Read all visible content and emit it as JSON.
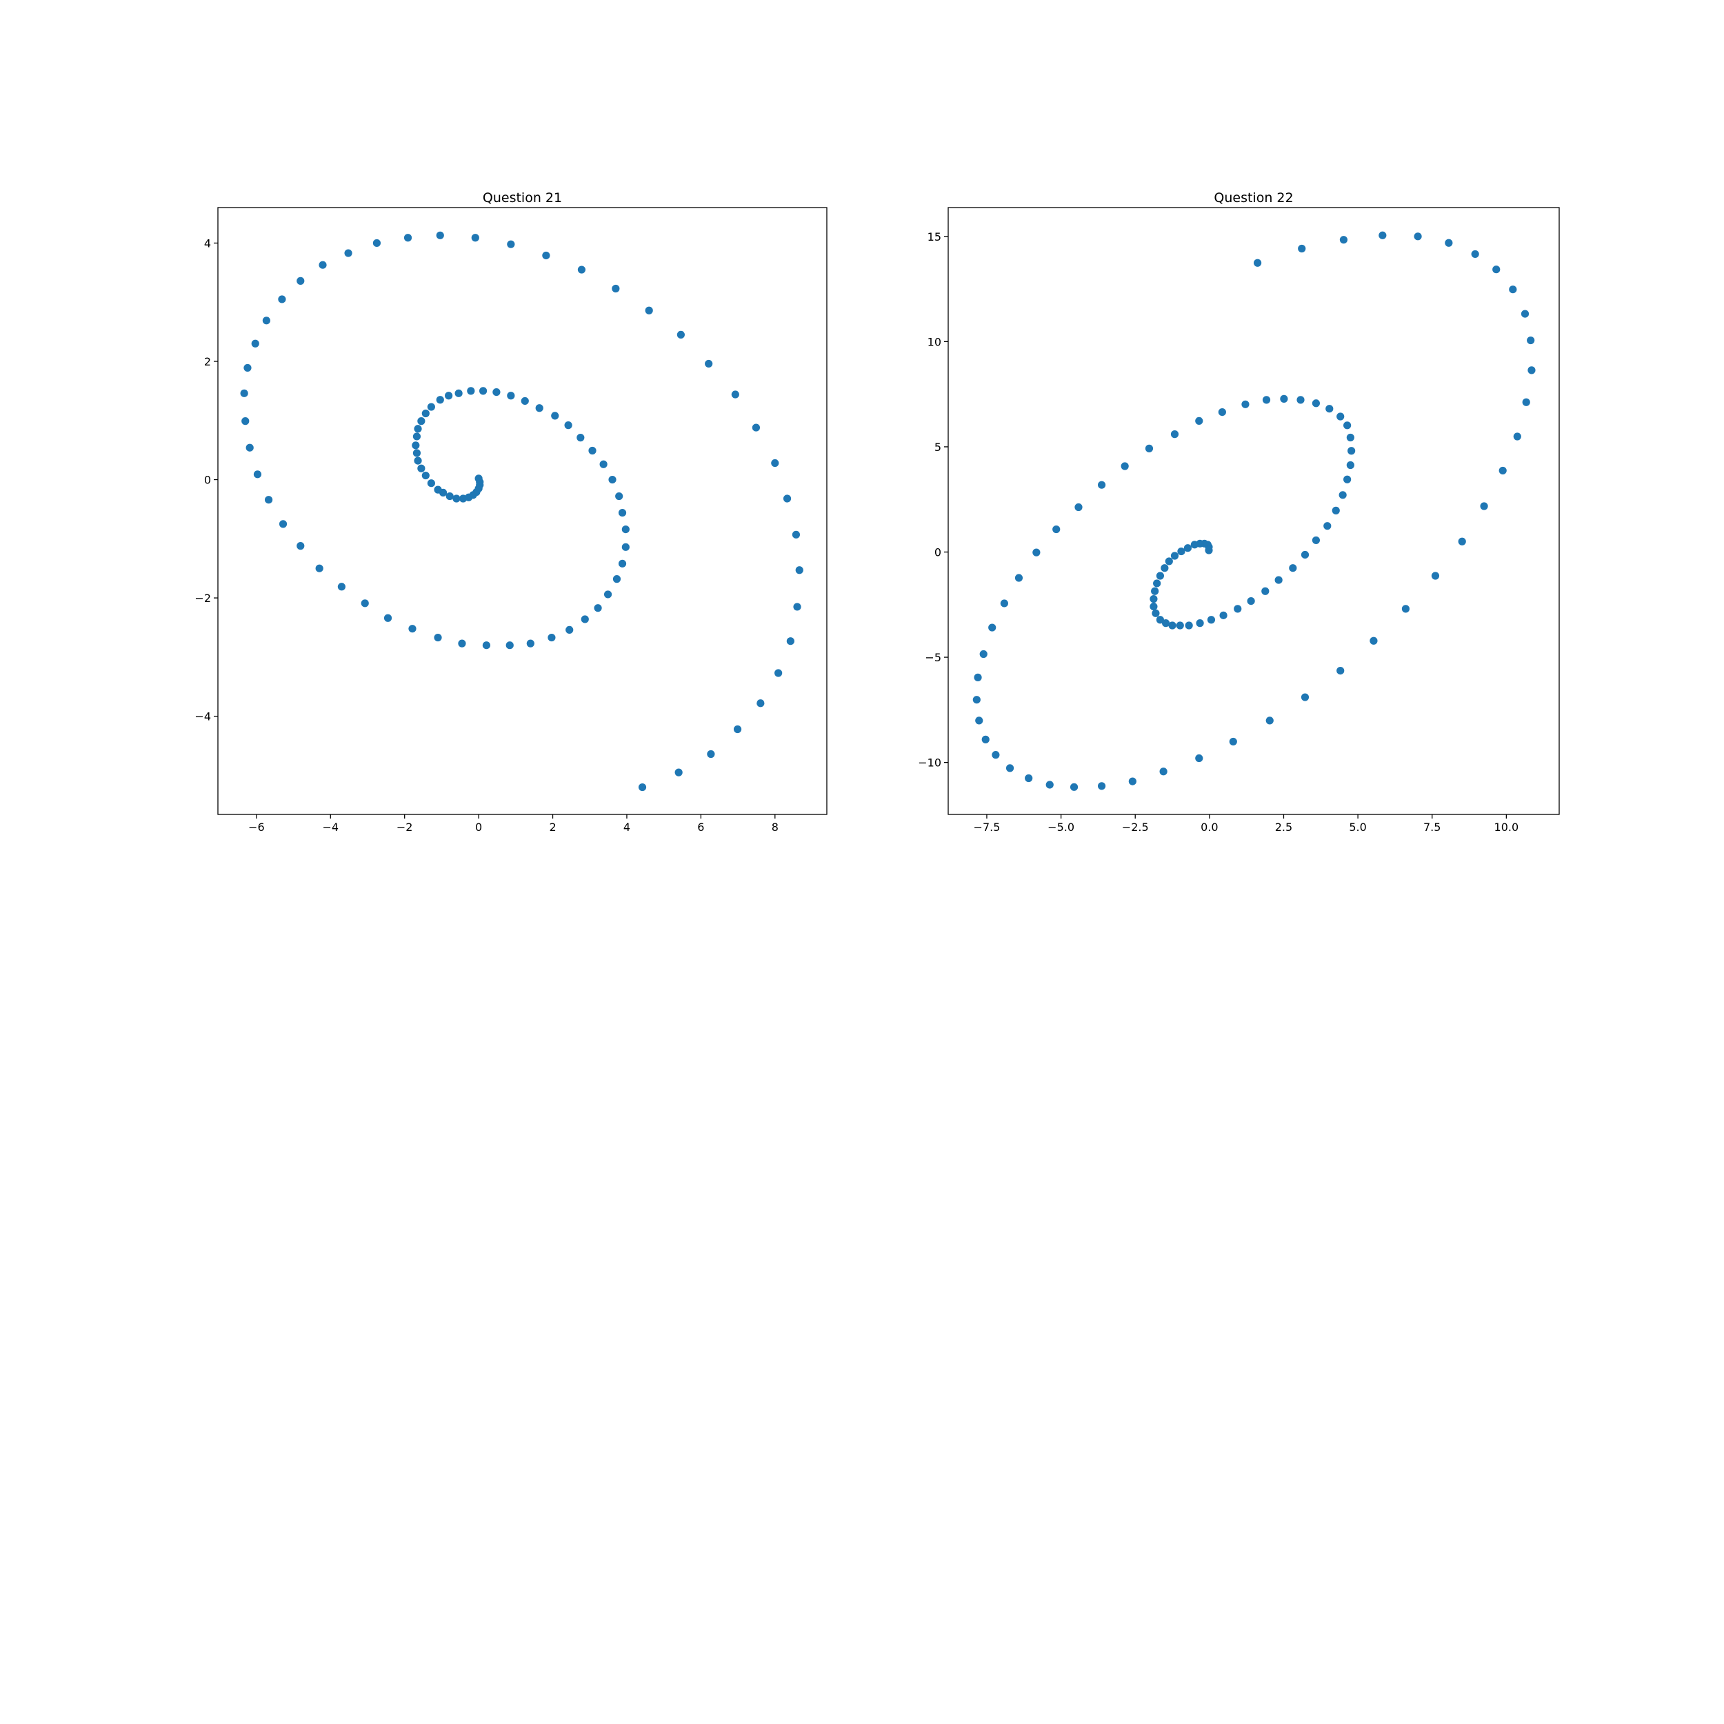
{
  "chart_data": [
    {
      "type": "scatter",
      "title": "Question 21",
      "color": "#1f77b4",
      "xlim": [
        -7.04,
        9.4
      ],
      "ylim": [
        -5.66,
        4.6
      ],
      "xticks": [
        {
          "value": -6,
          "label": "−6"
        },
        {
          "value": -4,
          "label": "−4"
        },
        {
          "value": -2,
          "label": "−2"
        },
        0,
        2,
        4,
        6,
        8
      ],
      "yticks": [
        {
          "value": -4,
          "label": "−4"
        },
        {
          "value": -2,
          "label": "−2"
        },
        0,
        2,
        4
      ],
      "x": [
        0,
        0.03,
        0.03,
        0,
        -0.06,
        -0.15,
        -0.27,
        -0.42,
        -0.6,
        -0.78,
        -0.96,
        -1.1,
        -1.28,
        -1.43,
        -1.55,
        -1.64,
        -1.67,
        -1.7,
        -1.67,
        -1.64,
        -1.55,
        -1.43,
        -1.28,
        -1.04,
        -0.81,
        -0.54,
        -0.21,
        0.12,
        0.48,
        0.87,
        1.25,
        1.64,
        2.06,
        2.42,
        2.75,
        3.07,
        3.37,
        3.61,
        3.79,
        3.88,
        3.97,
        3.97,
        3.88,
        3.73,
        3.49,
        3.22,
        2.87,
        2.45,
        1.97,
        1.4,
        0.84,
        0.21,
        -0.45,
        -1.1,
        -1.79,
        -2.45,
        -3.07,
        -3.7,
        -4.3,
        -4.81,
        -5.28,
        -5.67,
        -5.97,
        -6.18,
        -6.3,
        -6.33,
        -6.24,
        -6.03,
        -5.73,
        -5.31,
        -4.81,
        -4.21,
        -3.52,
        -2.75,
        -1.91,
        -1.04,
        -0.09,
        0.87,
        1.82,
        2.78,
        3.7,
        4.6,
        5.46,
        6.21,
        6.93,
        7.49,
        8.0,
        8.33,
        8.57,
        8.66,
        8.6,
        8.42,
        8.09,
        7.61,
        6.99,
        6.27,
        5.4,
        4.42
      ],
      "values": [
        0.02,
        -0.04,
        -0.09,
        -0.15,
        -0.21,
        -0.26,
        -0.3,
        -0.32,
        -0.32,
        -0.28,
        -0.22,
        -0.17,
        -0.06,
        0.07,
        0.19,
        0.32,
        0.45,
        0.58,
        0.73,
        0.86,
        0.99,
        1.12,
        1.23,
        1.35,
        1.42,
        1.46,
        1.5,
        1.5,
        1.48,
        1.42,
        1.33,
        1.21,
        1.08,
        0.92,
        0.71,
        0.49,
        0.26,
        0,
        -0.28,
        -0.56,
        -0.84,
        -1.14,
        -1.42,
        -1.68,
        -1.94,
        -2.17,
        -2.36,
        -2.54,
        -2.67,
        -2.77,
        -2.8,
        -2.8,
        -2.77,
        -2.67,
        -2.52,
        -2.34,
        -2.09,
        -1.81,
        -1.5,
        -1.12,
        -0.75,
        -0.34,
        0.09,
        0.54,
        0.99,
        1.46,
        1.89,
        2.3,
        2.69,
        3.05,
        3.36,
        3.63,
        3.83,
        4.0,
        4.09,
        4.13,
        4.09,
        3.98,
        3.79,
        3.55,
        3.23,
        2.86,
        2.45,
        1.96,
        1.44,
        0.88,
        0.28,
        -0.32,
        -0.93,
        -1.53,
        -2.15,
        -2.73,
        -3.27,
        -3.78,
        -4.22,
        -4.64,
        -4.95,
        -5.2
      ]
    },
    {
      "type": "scatter",
      "title": "Question 22",
      "color": "#1f77b4",
      "xlim": [
        -8.8,
        11.78
      ],
      "ylim": [
        -12.47,
        16.37
      ],
      "xticks": [
        {
          "value": -7.5,
          "label": "−7.5"
        },
        {
          "value": -5,
          "label": "−5.0"
        },
        {
          "value": -2.5,
          "label": "−2.5"
        },
        {
          "value": 0,
          "label": "0.0"
        },
        2.5,
        {
          "value": 5,
          "label": "5.0"
        },
        7.5,
        {
          "value": 10,
          "label": "10.0"
        }
      ],
      "yticks": [
        {
          "value": -10,
          "label": "−10"
        },
        {
          "value": -5,
          "label": "−5"
        },
        0,
        5,
        10,
        15
      ],
      "x": [
        -0.02,
        -0.02,
        -0.06,
        -0.17,
        -0.32,
        -0.5,
        -0.73,
        -0.95,
        -1.17,
        -1.36,
        -1.51,
        -1.66,
        -1.77,
        -1.84,
        -1.88,
        -1.88,
        -1.81,
        -1.66,
        -1.47,
        -1.25,
        -0.99,
        -0.69,
        -0.32,
        0.06,
        0.47,
        0.95,
        1.4,
        1.88,
        2.33,
        2.81,
        3.22,
        3.59,
        3.97,
        4.26,
        4.49,
        4.64,
        4.75,
        4.78,
        4.75,
        4.64,
        4.41,
        4.04,
        3.59,
        3.07,
        2.51,
        1.92,
        1.21,
        0.43,
        -0.35,
        -1.17,
        -2.03,
        -2.85,
        -3.63,
        -4.41,
        -5.16,
        -5.83,
        -6.42,
        -6.91,
        -7.32,
        -7.61,
        -7.8,
        -7.84,
        -7.76,
        -7.54,
        -7.2,
        -6.72,
        -6.09,
        -5.38,
        -4.56,
        -3.63,
        -2.59,
        -1.55,
        -0.35,
        0.8,
        2.03,
        3.22,
        4.41,
        5.53,
        6.61,
        7.61,
        8.51,
        9.25,
        9.88,
        10.37,
        10.67,
        10.85,
        10.82,
        10.63,
        10.22,
        9.66,
        8.95,
        8.06,
        7.02,
        5.83,
        4.52,
        3.11,
        1.62
      ],
      "values": [
        0.08,
        0.24,
        0.35,
        0.4,
        0.4,
        0.35,
        0.19,
        0.03,
        -0.18,
        -0.44,
        -0.76,
        -1.13,
        -1.49,
        -1.86,
        -2.23,
        -2.59,
        -2.91,
        -3.22,
        -3.38,
        -3.49,
        -3.49,
        -3.49,
        -3.38,
        -3.22,
        -3.01,
        -2.7,
        -2.33,
        -1.86,
        -1.33,
        -0.76,
        -0.13,
        0.56,
        1.24,
        1.97,
        2.71,
        3.45,
        4.13,
        4.81,
        5.44,
        6.02,
        6.44,
        6.81,
        7.07,
        7.23,
        7.28,
        7.23,
        7.02,
        6.65,
        6.23,
        5.6,
        4.92,
        4.08,
        3.19,
        2.13,
        1.08,
        -0.02,
        -1.23,
        -2.44,
        -3.59,
        -4.85,
        -5.96,
        -7.02,
        -8.01,
        -8.91,
        -9.64,
        -10.27,
        -10.75,
        -11.06,
        -11.17,
        -11.12,
        -10.9,
        -10.43,
        -9.8,
        -9.01,
        -8.01,
        -6.9,
        -5.64,
        -4.22,
        -2.7,
        -1.13,
        0.5,
        2.18,
        3.87,
        5.49,
        7.12,
        8.64,
        10.06,
        11.32,
        12.48,
        13.43,
        14.16,
        14.69,
        15.0,
        15.05,
        14.84,
        14.42,
        13.74
      ]
    }
  ]
}
